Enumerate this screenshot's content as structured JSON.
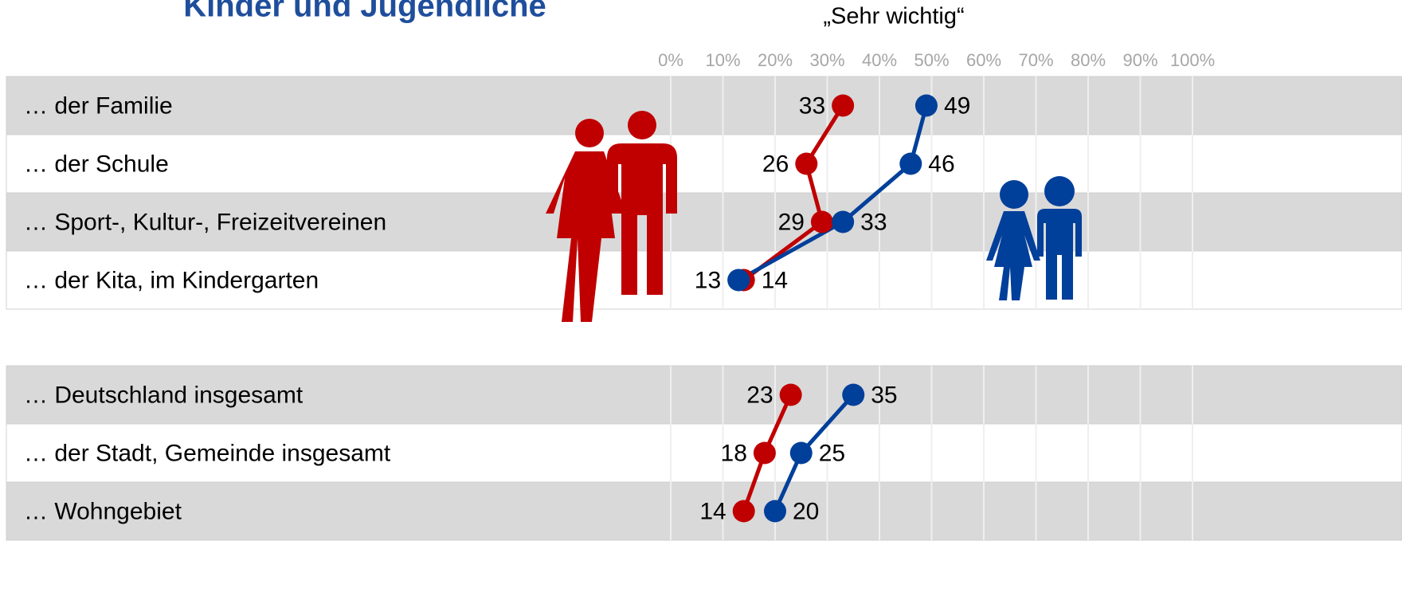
{
  "chart_data": [
    {
      "type": "dotline",
      "title": "Kinder und Jugendliche",
      "subtitle": "„Sehr wichtig“",
      "categories": [
        "… der Familie",
        "… der Schule",
        "… Sport-, Kultur-, Freizeitvereinen",
        "… der Kita, im Kindergarten"
      ],
      "series": [
        {
          "color": "#c00000",
          "values": [
            33,
            26,
            29,
            14
          ]
        },
        {
          "color": "#003f9a",
          "values": [
            49,
            46,
            33,
            13
          ]
        }
      ],
      "xlim": [
        0,
        100
      ],
      "xticks": [
        {
          "value": 0,
          "label": "0%"
        },
        {
          "value": 10,
          "label": "10%"
        },
        {
          "value": 20,
          "label": "20%"
        },
        {
          "value": 30,
          "label": "30%"
        },
        {
          "value": 40,
          "label": "40%"
        },
        {
          "value": 50,
          "label": "50%"
        },
        {
          "value": 60,
          "label": "60%"
        },
        {
          "value": 70,
          "label": "70%"
        },
        {
          "value": 80,
          "label": "80%"
        },
        {
          "value": 90,
          "label": "90%"
        },
        {
          "value": 100,
          "label": "100%"
        }
      ],
      "grid": true
    },
    {
      "type": "dotline",
      "categories": [
        "… Deutschland insgesamt",
        "… der Stadt, Gemeinde insgesamt",
        "… Wohngebiet"
      ],
      "series": [
        {
          "color": "#c00000",
          "values": [
            23,
            18,
            14
          ]
        },
        {
          "color": "#003f9a",
          "values": [
            35,
            25,
            20
          ]
        }
      ],
      "xlim": [
        0,
        100
      ]
    }
  ]
}
